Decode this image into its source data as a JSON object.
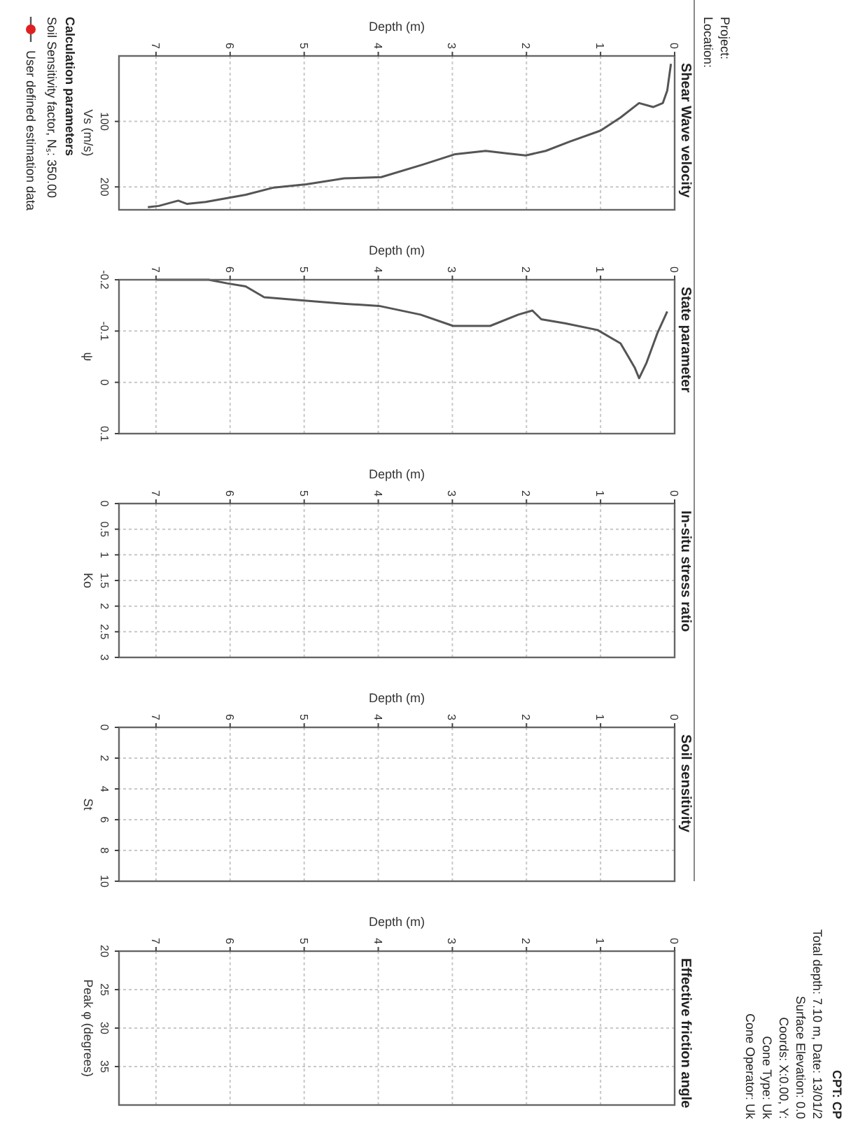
{
  "chart_data": [
    {
      "type": "line",
      "title": "Shear Wave velocity",
      "xlabel": "Depth (m)",
      "ylabel": "Vs (m/s)",
      "xlim": [
        7.5,
        0
      ],
      "xticks": [
        7,
        6,
        5,
        4,
        3,
        2,
        1,
        0
      ],
      "ylim": [
        235,
        0
      ],
      "yticks": [
        100,
        200
      ],
      "grid": true,
      "series": [
        {
          "color": "#555555",
          "x": [
            0.05,
            0.1,
            0.16,
            0.29,
            0.48,
            0.73,
            1.0,
            1.42,
            1.74,
            2.01,
            2.25,
            2.55,
            2.96,
            3.4,
            3.96,
            4.46,
            4.97,
            5.41,
            5.79,
            6.04,
            6.33,
            6.58,
            6.7,
            6.96,
            7.11
          ],
          "values": [
            12,
            53,
            72,
            78,
            72,
            94,
            114,
            131,
            145,
            152,
            149,
            145,
            150,
            166,
            185,
            187,
            196,
            201,
            212,
            217,
            223,
            226,
            221,
            229,
            231
          ]
        }
      ]
    },
    {
      "type": "line",
      "title": "State parameter",
      "xlabel": "Depth (m)",
      "ylabel": "ψ",
      "xlim": [
        7.5,
        0
      ],
      "xticks": [
        7,
        6,
        5,
        4,
        3,
        2,
        1,
        0
      ],
      "ylim": [
        0.1,
        -0.2
      ],
      "yticks": [
        -0.2,
        -0.1,
        0,
        0.1
      ],
      "grid": true,
      "series": [
        {
          "color": "#555555",
          "x": [
            0.1,
            0.23,
            0.38,
            0.48,
            0.54,
            0.73,
            1.04,
            1.48,
            1.8,
            1.92,
            2.11,
            2.49,
            2.99,
            3.43,
            3.99,
            4.44,
            4.97,
            5.54,
            5.79,
            6.04,
            6.29,
            6.92,
            6.99
          ],
          "values": [
            -0.138,
            -0.097,
            -0.038,
            -0.008,
            -0.029,
            -0.076,
            -0.102,
            -0.115,
            -0.123,
            -0.14,
            -0.132,
            -0.11,
            -0.11,
            -0.132,
            -0.149,
            -0.153,
            -0.159,
            -0.166,
            -0.187,
            -0.193,
            -0.2,
            -0.2,
            -0.2
          ]
        }
      ]
    },
    {
      "type": "line",
      "title": "In-situ stress ratio",
      "xlabel": "Depth (m)",
      "ylabel": "Ko",
      "xlim": [
        7.5,
        0
      ],
      "xticks": [
        7,
        6,
        5,
        4,
        3,
        2,
        1,
        0
      ],
      "ylim": [
        3,
        0
      ],
      "yticks": [
        0,
        0.5,
        1,
        1.5,
        2,
        2.5,
        3
      ],
      "grid": true
    },
    {
      "type": "line",
      "title": "Soil sensitivity",
      "xlabel": "Depth (m)",
      "ylabel": "St",
      "xlim": [
        7.5,
        0
      ],
      "xticks": [
        7,
        6,
        5,
        4,
        3,
        2,
        1,
        0
      ],
      "ylim": [
        10,
        0
      ],
      "yticks": [
        0,
        2,
        4,
        6,
        8,
        10
      ],
      "grid": true
    },
    {
      "type": "line",
      "title": "Effective friction angle",
      "xlabel": "Depth (m)",
      "ylabel": "Peak φ (degrees)",
      "xlim": [
        7.5,
        0
      ],
      "xticks": [
        7,
        6,
        5,
        4,
        3,
        2,
        1,
        0
      ],
      "ylim": [
        40,
        20
      ],
      "yticks": [
        20,
        25,
        30,
        35
      ],
      "grid": true
    },
    {
      "type": "other",
      "annotations": [
        "Project:",
        "Location:",
        "CPT: CP",
        "Total depth: 7.10 m, Date: 13/01/2",
        "Surface Elevation: 0.0",
        "Coords: X:0.00, Y:",
        "Cone Type: Uk",
        "Cone Operator: Uk",
        "Calculation parameters",
        "Soil Sensitivity factor, Nₛ: 350.00",
        "User defined estimation data"
      ]
    }
  ]
}
